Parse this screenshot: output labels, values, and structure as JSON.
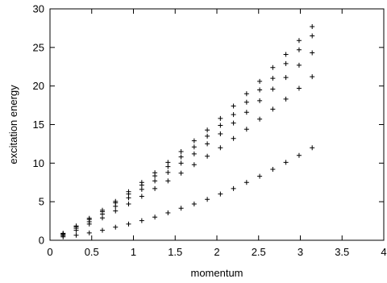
{
  "chart_data": {
    "type": "scatter",
    "xlabel": "momentum",
    "ylabel": "excitation energy",
    "xlim": [
      0,
      4
    ],
    "ylim": [
      0,
      30
    ],
    "xticks": [
      0,
      0.5,
      1,
      1.5,
      2,
      2.5,
      3,
      3.5,
      4
    ],
    "yticks": [
      0,
      5,
      10,
      15,
      20,
      25,
      30
    ],
    "xtick_labels": [
      "0",
      "0.5",
      "1",
      "1.5",
      "2",
      "2.5",
      "3",
      "3.5",
      "4"
    ],
    "ytick_labels": [
      "0",
      "5",
      "10",
      "15",
      "20",
      "25",
      "30"
    ],
    "grid": false,
    "marker": "plus",
    "x": [
      0.157,
      0.314,
      0.471,
      0.628,
      0.785,
      0.942,
      1.1,
      1.257,
      1.414,
      1.571,
      1.728,
      1.885,
      2.042,
      2.199,
      2.356,
      2.513,
      2.67,
      2.827,
      2.985,
      3.142
    ],
    "series": [
      {
        "values": [
          0.45,
          0.65,
          0.95,
          1.3,
          1.7,
          2.1,
          2.55,
          3.0,
          3.55,
          4.15,
          4.7,
          5.3,
          6.0,
          6.7,
          7.5,
          8.3,
          9.2,
          10.1,
          11.0,
          12.0
        ]
      },
      {
        "values": [
          0.6,
          1.3,
          2.1,
          2.9,
          3.8,
          4.7,
          5.7,
          6.7,
          7.7,
          8.7,
          9.8,
          10.9,
          12.0,
          13.2,
          14.4,
          15.7,
          17.0,
          18.3,
          19.7,
          21.2
        ]
      },
      {
        "values": [
          0.75,
          1.55,
          2.4,
          3.4,
          4.4,
          5.5,
          6.6,
          7.7,
          8.8,
          10.0,
          11.2,
          12.5,
          13.8,
          15.2,
          16.6,
          18.1,
          19.6,
          21.1,
          22.7,
          24.3
        ]
      },
      {
        "values": [
          0.85,
          1.75,
          2.7,
          3.7,
          4.85,
          6.0,
          7.15,
          8.35,
          9.55,
          10.8,
          12.1,
          13.5,
          14.9,
          16.3,
          17.9,
          19.5,
          21.0,
          22.9,
          24.7,
          26.5
        ]
      },
      {
        "values": [
          0.9,
          1.85,
          2.85,
          3.9,
          5.05,
          6.3,
          7.5,
          8.75,
          10.1,
          11.5,
          12.9,
          14.3,
          15.8,
          17.4,
          19.0,
          20.6,
          22.4,
          24.1,
          25.9,
          27.7
        ]
      }
    ]
  }
}
